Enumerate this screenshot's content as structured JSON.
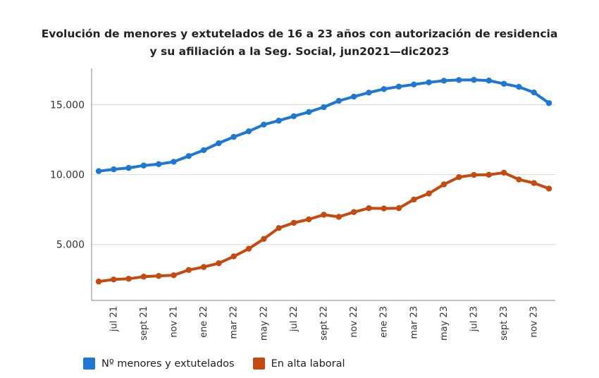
{
  "title_line1": "Evolución de menores y extutelados de 16 a 23 años con autorización de residencia",
  "title_line2": "y su afiliación a la Seg. Social, jun2021—dic2023",
  "chart_data": {
    "type": "line",
    "x": [
      "jun 21",
      "jul 21",
      "ago 21",
      "sept 21",
      "oct 21",
      "nov 21",
      "dic 21",
      "ene 22",
      "feb 22",
      "mar 22",
      "abr 22",
      "may 22",
      "jun 22",
      "jul 22",
      "ago 22",
      "sept 22",
      "oct 22",
      "nov 22",
      "dic 22",
      "ene 23",
      "feb 23",
      "mar 23",
      "abr 23",
      "may 23",
      "jun 23",
      "jul 23",
      "ago 23",
      "sept 23",
      "oct 23",
      "nov 23",
      "dic 23"
    ],
    "tick_labels": [
      {
        "index": 1,
        "label": "jul 21"
      },
      {
        "index": 3,
        "label": "sept 21"
      },
      {
        "index": 5,
        "label": "nov 21"
      },
      {
        "index": 7,
        "label": "ene 22"
      },
      {
        "index": 9,
        "label": "mar 22"
      },
      {
        "index": 11,
        "label": "may 22"
      },
      {
        "index": 13,
        "label": "jul 22"
      },
      {
        "index": 15,
        "label": "sept 22"
      },
      {
        "index": 17,
        "label": "nov 22"
      },
      {
        "index": 19,
        "label": "ene 23"
      },
      {
        "index": 21,
        "label": "mar 23"
      },
      {
        "index": 23,
        "label": "may 23"
      },
      {
        "index": 25,
        "label": "jul 23"
      },
      {
        "index": 27,
        "label": "sept 23"
      },
      {
        "index": 29,
        "label": "nov 23"
      }
    ],
    "y_ticks": [
      {
        "value": 5000,
        "label": "5.000"
      },
      {
        "value": 10000,
        "label": "10.000"
      },
      {
        "value": 15000,
        "label": "15.000"
      }
    ],
    "ylim": [
      1000,
      17600
    ],
    "grid": "horizontal",
    "legend_position": "bottom-left",
    "series": [
      {
        "name": "Nº menores y extutelados",
        "color": "#1f77d4",
        "values": [
          10250,
          10380,
          10480,
          10650,
          10750,
          10920,
          11330,
          11750,
          12250,
          12700,
          13100,
          13580,
          13860,
          14180,
          14480,
          14830,
          15280,
          15580,
          15870,
          16120,
          16300,
          16450,
          16600,
          16720,
          16770,
          16780,
          16730,
          16500,
          16280,
          15880,
          15120
        ]
      },
      {
        "name": "En alta laboral",
        "color": "#c44a10",
        "values": [
          2350,
          2500,
          2550,
          2700,
          2750,
          2800,
          3180,
          3390,
          3660,
          4150,
          4700,
          5400,
          6180,
          6550,
          6800,
          7130,
          6980,
          7320,
          7600,
          7580,
          7600,
          8220,
          8650,
          9300,
          9820,
          9980,
          9990,
          10140,
          9650,
          9400,
          9000
        ]
      }
    ]
  }
}
